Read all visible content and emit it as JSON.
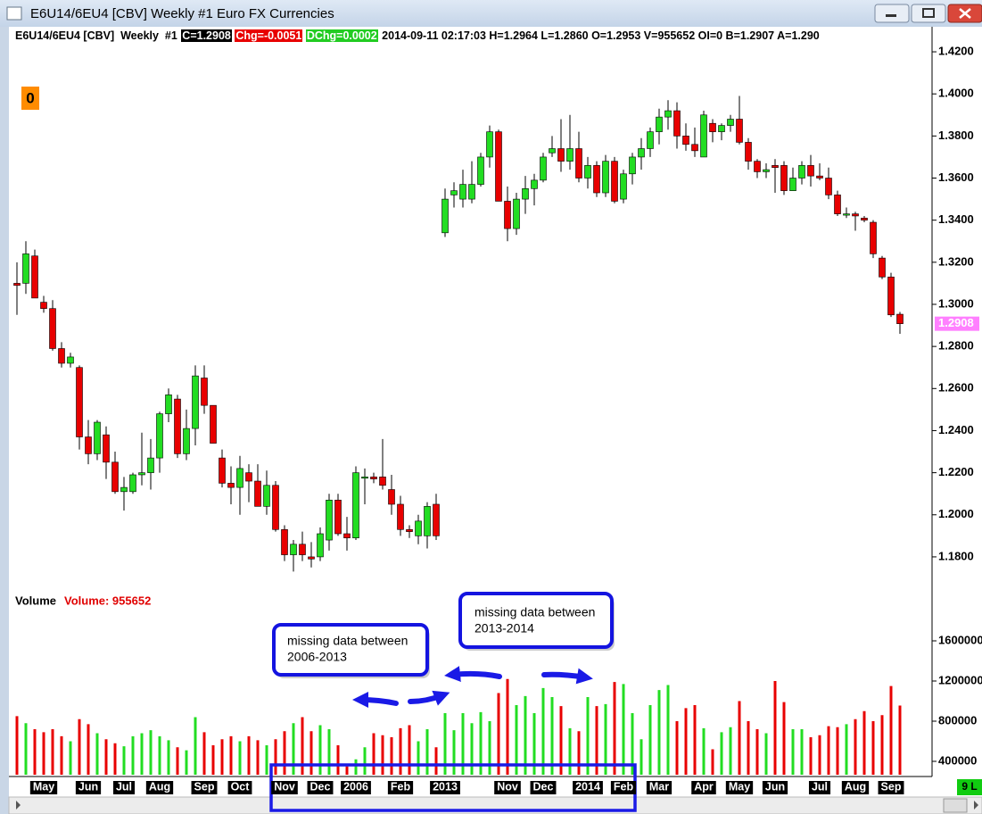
{
  "window": {
    "title": "E6U14/6EU4 [CBV]  Weekly  #1  Euro FX Currencies"
  },
  "header": {
    "symbol": "E6U14/6EU4 [CBV]  Weekly  #1",
    "close": "C=1.2908",
    "change": "Chg=-0.0051",
    "dchange": "DChg=0.0002",
    "info": "2014-09-11 02:17:03 H=1.2964 L=1.2860 O=1.2953 V=955652 OI=0 B=1.2907 A=1.290"
  },
  "badge": "0",
  "status": "9 L",
  "annotations": [
    {
      "lines": [
        "missing data between",
        "2006-2013"
      ]
    },
    {
      "lines": [
        "missing data between",
        "2013-2014"
      ]
    }
  ],
  "chart_data": [
    {
      "type": "candlestick",
      "categories": [
        null,
        null,
        null,
        "May",
        null,
        null,
        null,
        null,
        "Jun",
        null,
        null,
        null,
        "Jul",
        null,
        null,
        null,
        "Aug",
        null,
        null,
        null,
        null,
        "Sep",
        null,
        null,
        null,
        "Oct",
        null,
        null,
        null,
        null,
        "Nov",
        null,
        null,
        null,
        "Dec",
        null,
        null,
        null,
        "2006",
        null,
        null,
        null,
        null,
        "Feb",
        null,
        null,
        null,
        null,
        "2013",
        null,
        null,
        null,
        null,
        null,
        null,
        "Nov",
        null,
        null,
        null,
        "Dec",
        null,
        null,
        null,
        null,
        "2014",
        null,
        null,
        null,
        "Feb",
        null,
        null,
        null,
        "Mar",
        null,
        null,
        null,
        null,
        "Apr",
        null,
        null,
        null,
        "May",
        null,
        null,
        null,
        "Jun",
        null,
        null,
        null,
        null,
        "Jul",
        null,
        null,
        null,
        "Aug",
        null,
        null,
        null,
        "Sep",
        null
      ],
      "candles": [
        {
          "o": 1.31,
          "h": 1.32,
          "l": 1.295,
          "c": 1.309
        },
        {
          "o": 1.31,
          "h": 1.33,
          "l": 1.305,
          "c": 1.324
        },
        {
          "o": 1.323,
          "h": 1.326,
          "l": 1.303,
          "c": 1.303
        },
        {
          "o": 1.301,
          "h": 1.304,
          "l": 1.296,
          "c": 1.298
        },
        {
          "o": 1.298,
          "h": 1.302,
          "l": 1.278,
          "c": 1.279
        },
        {
          "o": 1.279,
          "h": 1.282,
          "l": 1.27,
          "c": 1.272
        },
        {
          "o": 1.272,
          "h": 1.277,
          "l": 1.27,
          "c": 1.275
        },
        {
          "o": 1.27,
          "h": 1.271,
          "l": 1.231,
          "c": 1.237
        },
        {
          "o": 1.237,
          "h": 1.245,
          "l": 1.224,
          "c": 1.229
        },
        {
          "o": 1.229,
          "h": 1.245,
          "l": 1.226,
          "c": 1.244
        },
        {
          "o": 1.238,
          "h": 1.242,
          "l": 1.217,
          "c": 1.225
        },
        {
          "o": 1.225,
          "h": 1.23,
          "l": 1.21,
          "c": 1.211
        },
        {
          "o": 1.211,
          "h": 1.218,
          "l": 1.202,
          "c": 1.213
        },
        {
          "o": 1.211,
          "h": 1.22,
          "l": 1.21,
          "c": 1.219
        },
        {
          "o": 1.219,
          "h": 1.239,
          "l": 1.214,
          "c": 1.22
        },
        {
          "o": 1.22,
          "h": 1.236,
          "l": 1.212,
          "c": 1.227
        },
        {
          "o": 1.227,
          "h": 1.249,
          "l": 1.22,
          "c": 1.248
        },
        {
          "o": 1.248,
          "h": 1.26,
          "l": 1.244,
          "c": 1.257
        },
        {
          "o": 1.255,
          "h": 1.257,
          "l": 1.227,
          "c": 1.229
        },
        {
          "o": 1.229,
          "h": 1.25,
          "l": 1.226,
          "c": 1.241
        },
        {
          "o": 1.241,
          "h": 1.271,
          "l": 1.233,
          "c": 1.266
        },
        {
          "o": 1.265,
          "h": 1.271,
          "l": 1.248,
          "c": 1.252
        },
        {
          "o": 1.252,
          "h": 1.252,
          "l": 1.234,
          "c": 1.234
        },
        {
          "o": 1.227,
          "h": 1.231,
          "l": 1.213,
          "c": 1.215
        },
        {
          "o": 1.215,
          "h": 1.223,
          "l": 1.205,
          "c": 1.213
        },
        {
          "o": 1.213,
          "h": 1.228,
          "l": 1.2,
          "c": 1.222
        },
        {
          "o": 1.22,
          "h": 1.224,
          "l": 1.206,
          "c": 1.216
        },
        {
          "o": 1.216,
          "h": 1.224,
          "l": 1.204,
          "c": 1.204
        },
        {
          "o": 1.204,
          "h": 1.221,
          "l": 1.2,
          "c": 1.214
        },
        {
          "o": 1.214,
          "h": 1.216,
          "l": 1.192,
          "c": 1.193
        },
        {
          "o": 1.193,
          "h": 1.195,
          "l": 1.178,
          "c": 1.181
        },
        {
          "o": 1.181,
          "h": 1.188,
          "l": 1.173,
          "c": 1.186
        },
        {
          "o": 1.186,
          "h": 1.192,
          "l": 1.178,
          "c": 1.181
        },
        {
          "o": 1.18,
          "h": 1.187,
          "l": 1.175,
          "c": 1.179
        },
        {
          "o": 1.18,
          "h": 1.194,
          "l": 1.178,
          "c": 1.191
        },
        {
          "o": 1.188,
          "h": 1.21,
          "l": 1.183,
          "c": 1.207
        },
        {
          "o": 1.207,
          "h": 1.21,
          "l": 1.19,
          "c": 1.191
        },
        {
          "o": 1.191,
          "h": 1.199,
          "l": 1.183,
          "c": 1.189
        },
        {
          "o": 1.189,
          "h": 1.223,
          "l": 1.188,
          "c": 1.22
        },
        {
          "o": 1.218,
          "h": 1.222,
          "l": 1.205,
          "c": 1.218
        },
        {
          "o": 1.218,
          "h": 1.22,
          "l": 1.215,
          "c": 1.217
        },
        {
          "o": 1.218,
          "h": 1.236,
          "l": 1.212,
          "c": 1.214
        },
        {
          "o": 1.212,
          "h": 1.219,
          "l": 1.2,
          "c": 1.205
        },
        {
          "o": 1.205,
          "h": 1.209,
          "l": 1.19,
          "c": 1.193
        },
        {
          "o": 1.193,
          "h": 1.195,
          "l": 1.189,
          "c": 1.192
        },
        {
          "o": 1.19,
          "h": 1.2,
          "l": 1.186,
          "c": 1.197
        },
        {
          "o": 1.19,
          "h": 1.206,
          "l": 1.184,
          "c": 1.204
        },
        {
          "o": 1.205,
          "h": 1.21,
          "l": 1.188,
          "c": 1.19
        },
        {
          "o": 1.334,
          "h": 1.355,
          "l": 1.332,
          "c": 1.35
        },
        {
          "o": 1.352,
          "h": 1.358,
          "l": 1.346,
          "c": 1.354
        },
        {
          "o": 1.35,
          "h": 1.364,
          "l": 1.346,
          "c": 1.357
        },
        {
          "o": 1.35,
          "h": 1.368,
          "l": 1.348,
          "c": 1.357
        },
        {
          "o": 1.357,
          "h": 1.372,
          "l": 1.356,
          "c": 1.37
        },
        {
          "o": 1.37,
          "h": 1.385,
          "l": 1.365,
          "c": 1.382
        },
        {
          "o": 1.382,
          "h": 1.383,
          "l": 1.349,
          "c": 1.349
        },
        {
          "o": 1.349,
          "h": 1.356,
          "l": 1.33,
          "c": 1.336
        },
        {
          "o": 1.336,
          "h": 1.353,
          "l": 1.333,
          "c": 1.35
        },
        {
          "o": 1.35,
          "h": 1.361,
          "l": 1.343,
          "c": 1.355
        },
        {
          "o": 1.355,
          "h": 1.362,
          "l": 1.347,
          "c": 1.359
        },
        {
          "o": 1.359,
          "h": 1.372,
          "l": 1.358,
          "c": 1.37
        },
        {
          "o": 1.372,
          "h": 1.38,
          "l": 1.37,
          "c": 1.374
        },
        {
          "o": 1.374,
          "h": 1.388,
          "l": 1.363,
          "c": 1.368
        },
        {
          "o": 1.368,
          "h": 1.39,
          "l": 1.364,
          "c": 1.374
        },
        {
          "o": 1.374,
          "h": 1.382,
          "l": 1.358,
          "c": 1.36
        },
        {
          "o": 1.36,
          "h": 1.37,
          "l": 1.355,
          "c": 1.366
        },
        {
          "o": 1.366,
          "h": 1.368,
          "l": 1.351,
          "c": 1.353
        },
        {
          "o": 1.353,
          "h": 1.371,
          "l": 1.351,
          "c": 1.368
        },
        {
          "o": 1.368,
          "h": 1.37,
          "l": 1.348,
          "c": 1.349
        },
        {
          "o": 1.35,
          "h": 1.364,
          "l": 1.348,
          "c": 1.362
        },
        {
          "o": 1.362,
          "h": 1.372,
          "l": 1.357,
          "c": 1.37
        },
        {
          "o": 1.37,
          "h": 1.379,
          "l": 1.364,
          "c": 1.374
        },
        {
          "o": 1.374,
          "h": 1.384,
          "l": 1.37,
          "c": 1.382
        },
        {
          "o": 1.382,
          "h": 1.393,
          "l": 1.376,
          "c": 1.389
        },
        {
          "o": 1.389,
          "h": 1.397,
          "l": 1.383,
          "c": 1.392
        },
        {
          "o": 1.392,
          "h": 1.396,
          "l": 1.374,
          "c": 1.38
        },
        {
          "o": 1.38,
          "h": 1.386,
          "l": 1.373,
          "c": 1.376
        },
        {
          "o": 1.376,
          "h": 1.384,
          "l": 1.37,
          "c": 1.373
        },
        {
          "o": 1.37,
          "h": 1.392,
          "l": 1.37,
          "c": 1.39
        },
        {
          "o": 1.386,
          "h": 1.388,
          "l": 1.377,
          "c": 1.382
        },
        {
          "o": 1.382,
          "h": 1.386,
          "l": 1.378,
          "c": 1.385
        },
        {
          "o": 1.385,
          "h": 1.39,
          "l": 1.382,
          "c": 1.388
        },
        {
          "o": 1.388,
          "h": 1.399,
          "l": 1.376,
          "c": 1.377
        },
        {
          "o": 1.377,
          "h": 1.379,
          "l": 1.364,
          "c": 1.368
        },
        {
          "o": 1.368,
          "h": 1.369,
          "l": 1.36,
          "c": 1.363
        },
        {
          "o": 1.363,
          "h": 1.367,
          "l": 1.36,
          "c": 1.364
        },
        {
          "o": 1.366,
          "h": 1.369,
          "l": 1.353,
          "c": 1.365
        },
        {
          "o": 1.366,
          "h": 1.368,
          "l": 1.352,
          "c": 1.354
        },
        {
          "o": 1.354,
          "h": 1.365,
          "l": 1.354,
          "c": 1.36
        },
        {
          "o": 1.36,
          "h": 1.368,
          "l": 1.357,
          "c": 1.366
        },
        {
          "o": 1.366,
          "h": 1.371,
          "l": 1.356,
          "c": 1.361
        },
        {
          "o": 1.361,
          "h": 1.367,
          "l": 1.359,
          "c": 1.36
        },
        {
          "o": 1.36,
          "h": 1.365,
          "l": 1.35,
          "c": 1.352
        },
        {
          "o": 1.352,
          "h": 1.354,
          "l": 1.342,
          "c": 1.343
        },
        {
          "o": 1.343,
          "h": 1.346,
          "l": 1.341,
          "c": 1.343
        },
        {
          "o": 1.343,
          "h": 1.344,
          "l": 1.335,
          "c": 1.342
        },
        {
          "o": 1.341,
          "h": 1.342,
          "l": 1.339,
          "c": 1.34
        },
        {
          "o": 1.339,
          "h": 1.34,
          "l": 1.322,
          "c": 1.324
        },
        {
          "o": 1.322,
          "h": 1.323,
          "l": 1.312,
          "c": 1.313
        },
        {
          "o": 1.313,
          "h": 1.315,
          "l": 1.294,
          "c": 1.295
        },
        {
          "o": 1.2953,
          "h": 1.2964,
          "l": 1.286,
          "c": 1.2908
        }
      ],
      "ylim": [
        1.1647,
        1.4285
      ],
      "yticks": [
        {
          "value": 1.18,
          "label": "1.1800"
        },
        {
          "value": 1.2,
          "label": "1.2000"
        },
        {
          "value": 1.22,
          "label": "1.2200"
        },
        {
          "value": 1.24,
          "label": "1.2400"
        },
        {
          "value": 1.26,
          "label": "1.2600"
        },
        {
          "value": 1.28,
          "label": "1.2800"
        },
        {
          "value": 1.3,
          "label": "1.3000"
        },
        {
          "value": 1.32,
          "label": "1.3200"
        },
        {
          "value": 1.34,
          "label": "1.3400"
        },
        {
          "value": 1.36,
          "label": "1.3600"
        },
        {
          "value": 1.38,
          "label": "1.3800"
        },
        {
          "value": 1.4,
          "label": "1.4000"
        },
        {
          "value": 1.42,
          "label": "1.4200"
        }
      ],
      "last_price": {
        "value": 1.2908,
        "label": "1.2908"
      },
      "colors": {
        "up": "#22dd22",
        "down": "#e80000",
        "last": "#ff80ff"
      }
    },
    {
      "type": "bar",
      "title": "Volume",
      "value_label": "Volume: 955652",
      "values": [
        850000,
        780000,
        720000,
        690000,
        720000,
        650000,
        600000,
        820000,
        770000,
        680000,
        620000,
        580000,
        550000,
        650000,
        680000,
        710000,
        650000,
        610000,
        540000,
        510000,
        840000,
        690000,
        560000,
        620000,
        650000,
        600000,
        650000,
        610000,
        560000,
        620000,
        700000,
        780000,
        840000,
        700000,
        760000,
        720000,
        560000,
        350000,
        420000,
        540000,
        680000,
        660000,
        640000,
        730000,
        760000,
        600000,
        720000,
        540000,
        880000,
        710000,
        880000,
        780000,
        890000,
        800000,
        1080000,
        1220000,
        960000,
        1050000,
        880000,
        1130000,
        1040000,
        950000,
        730000,
        700000,
        1040000,
        950000,
        970000,
        1190000,
        1170000,
        880000,
        620000,
        960000,
        1110000,
        1160000,
        800000,
        930000,
        960000,
        730000,
        520000,
        690000,
        740000,
        1000000,
        800000,
        720000,
        680000,
        1200000,
        990000,
        720000,
        720000,
        640000,
        660000,
        750000,
        740000,
        770000,
        820000,
        900000,
        800000,
        860000,
        1150000,
        955652
      ],
      "ylim": [
        266667,
        1800000
      ],
      "yticks": [
        400000,
        800000,
        1200000,
        1600000
      ]
    }
  ]
}
